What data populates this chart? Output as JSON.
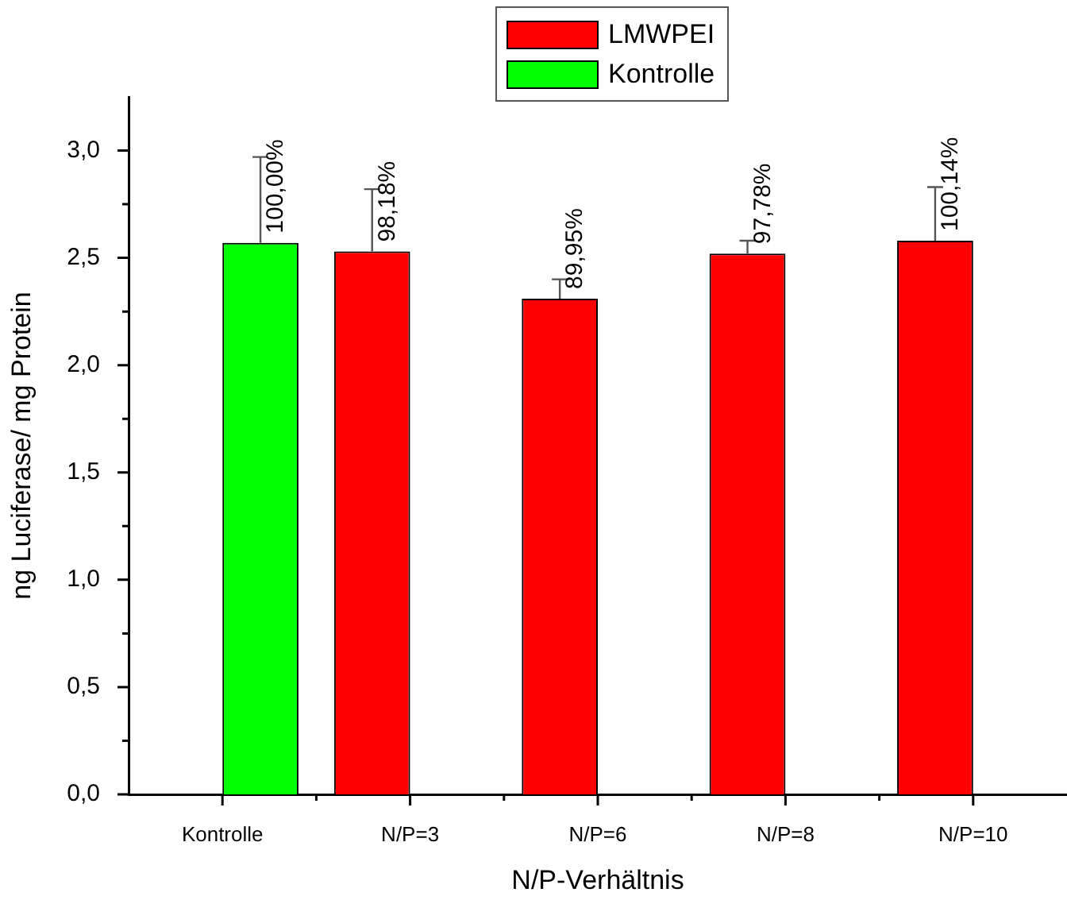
{
  "chart_data": {
    "type": "bar",
    "xlabel": "N/P-Verhältnis",
    "ylabel": "ng Luciferase/ mg Protein",
    "categories": [
      "Kontrolle",
      "N/P=3",
      "N/P=6",
      "N/P=8",
      "N/P=10"
    ],
    "series": [
      {
        "name": "LMWPEI",
        "color": "#ff0000",
        "values": [
          null,
          2.53,
          2.31,
          2.52,
          2.58
        ],
        "errors": [
          null,
          [
            2.53,
            2.82
          ],
          [
            2.31,
            2.4
          ],
          [
            2.52,
            2.58
          ],
          [
            2.58,
            2.83
          ]
        ]
      },
      {
        "name": "Kontrolle",
        "color": "#00ff00",
        "values": [
          2.57,
          null,
          null,
          null,
          null
        ],
        "errors": [
          [
            2.57,
            2.97
          ],
          null,
          null,
          null,
          null
        ]
      }
    ],
    "annotations": [
      {
        "text": "100,00%",
        "x": "Kontrolle",
        "y": 2.57
      },
      {
        "text": "98,18%",
        "x": "N/P=3",
        "y": 2.53
      },
      {
        "text": "89,95%",
        "x": "N/P=6",
        "y": 2.31
      },
      {
        "text": "97,78%",
        "x": "N/P=8",
        "y": 2.52
      },
      {
        "text": "100,14%",
        "x": "N/P=10",
        "y": 2.58
      }
    ],
    "ylim": [
      0,
      3.25
    ],
    "yticks": [
      {
        "value": 0,
        "label": "0,0"
      },
      {
        "value": 0.25,
        "label": null
      },
      {
        "value": 0.5,
        "label": "0,5"
      },
      {
        "value": 0.75,
        "label": null
      },
      {
        "value": 1,
        "label": "1,0"
      },
      {
        "value": 1.25,
        "label": null
      },
      {
        "value": 1.5,
        "label": "1,5"
      },
      {
        "value": 1.75,
        "label": null
      },
      {
        "value": 2,
        "label": "2,0"
      },
      {
        "value": 2.25,
        "label": null
      },
      {
        "value": 2.5,
        "label": "2,5"
      },
      {
        "value": 2.75,
        "label": null
      },
      {
        "value": 3,
        "label": "3,0"
      }
    ],
    "legend": "top"
  }
}
